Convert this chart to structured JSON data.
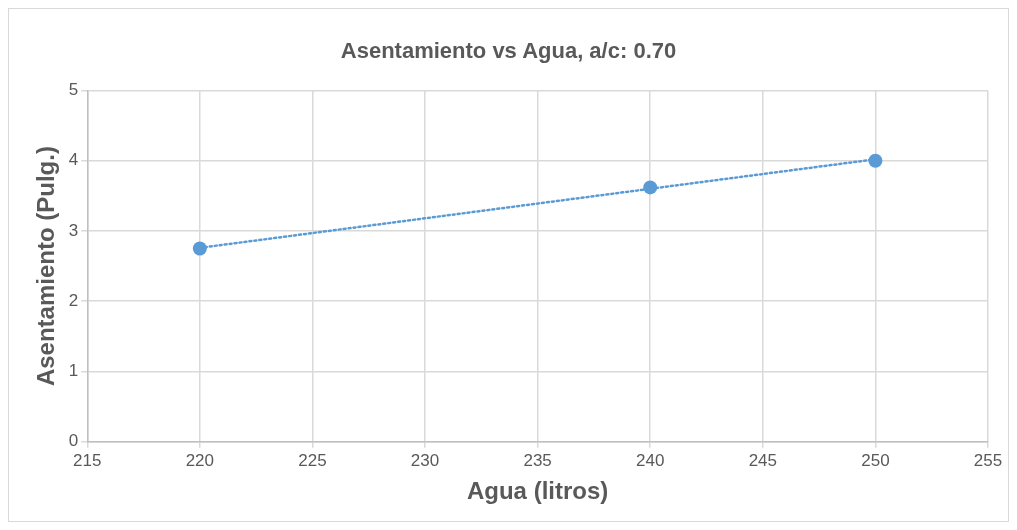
{
  "chart_data": {
    "type": "scatter",
    "title": "Asentamiento vs Agua, a/c: 0.70",
    "xlabel": "Agua (litros)",
    "ylabel": "Asentamiento (Pulg.)",
    "x": [
      220,
      240,
      250
    ],
    "series": [
      {
        "type": "scatter",
        "color": "#5b9bd5",
        "values": [
          2.75,
          3.62,
          4
        ],
        "marker": "circle"
      },
      {
        "type": "line",
        "color": "#5b9bd5",
        "x": [
          220,
          250
        ],
        "values": [
          2.76,
          4.02
        ],
        "line_style": "dotted",
        "marker": "none"
      }
    ],
    "xlim": [
      215,
      255
    ],
    "xticks": [
      215,
      220,
      225,
      230,
      235,
      240,
      245,
      250,
      255
    ],
    "ylim": [
      0,
      5
    ],
    "yticks": [
      0,
      1,
      2,
      3,
      4,
      5
    ],
    "grid": true,
    "legend": false
  }
}
